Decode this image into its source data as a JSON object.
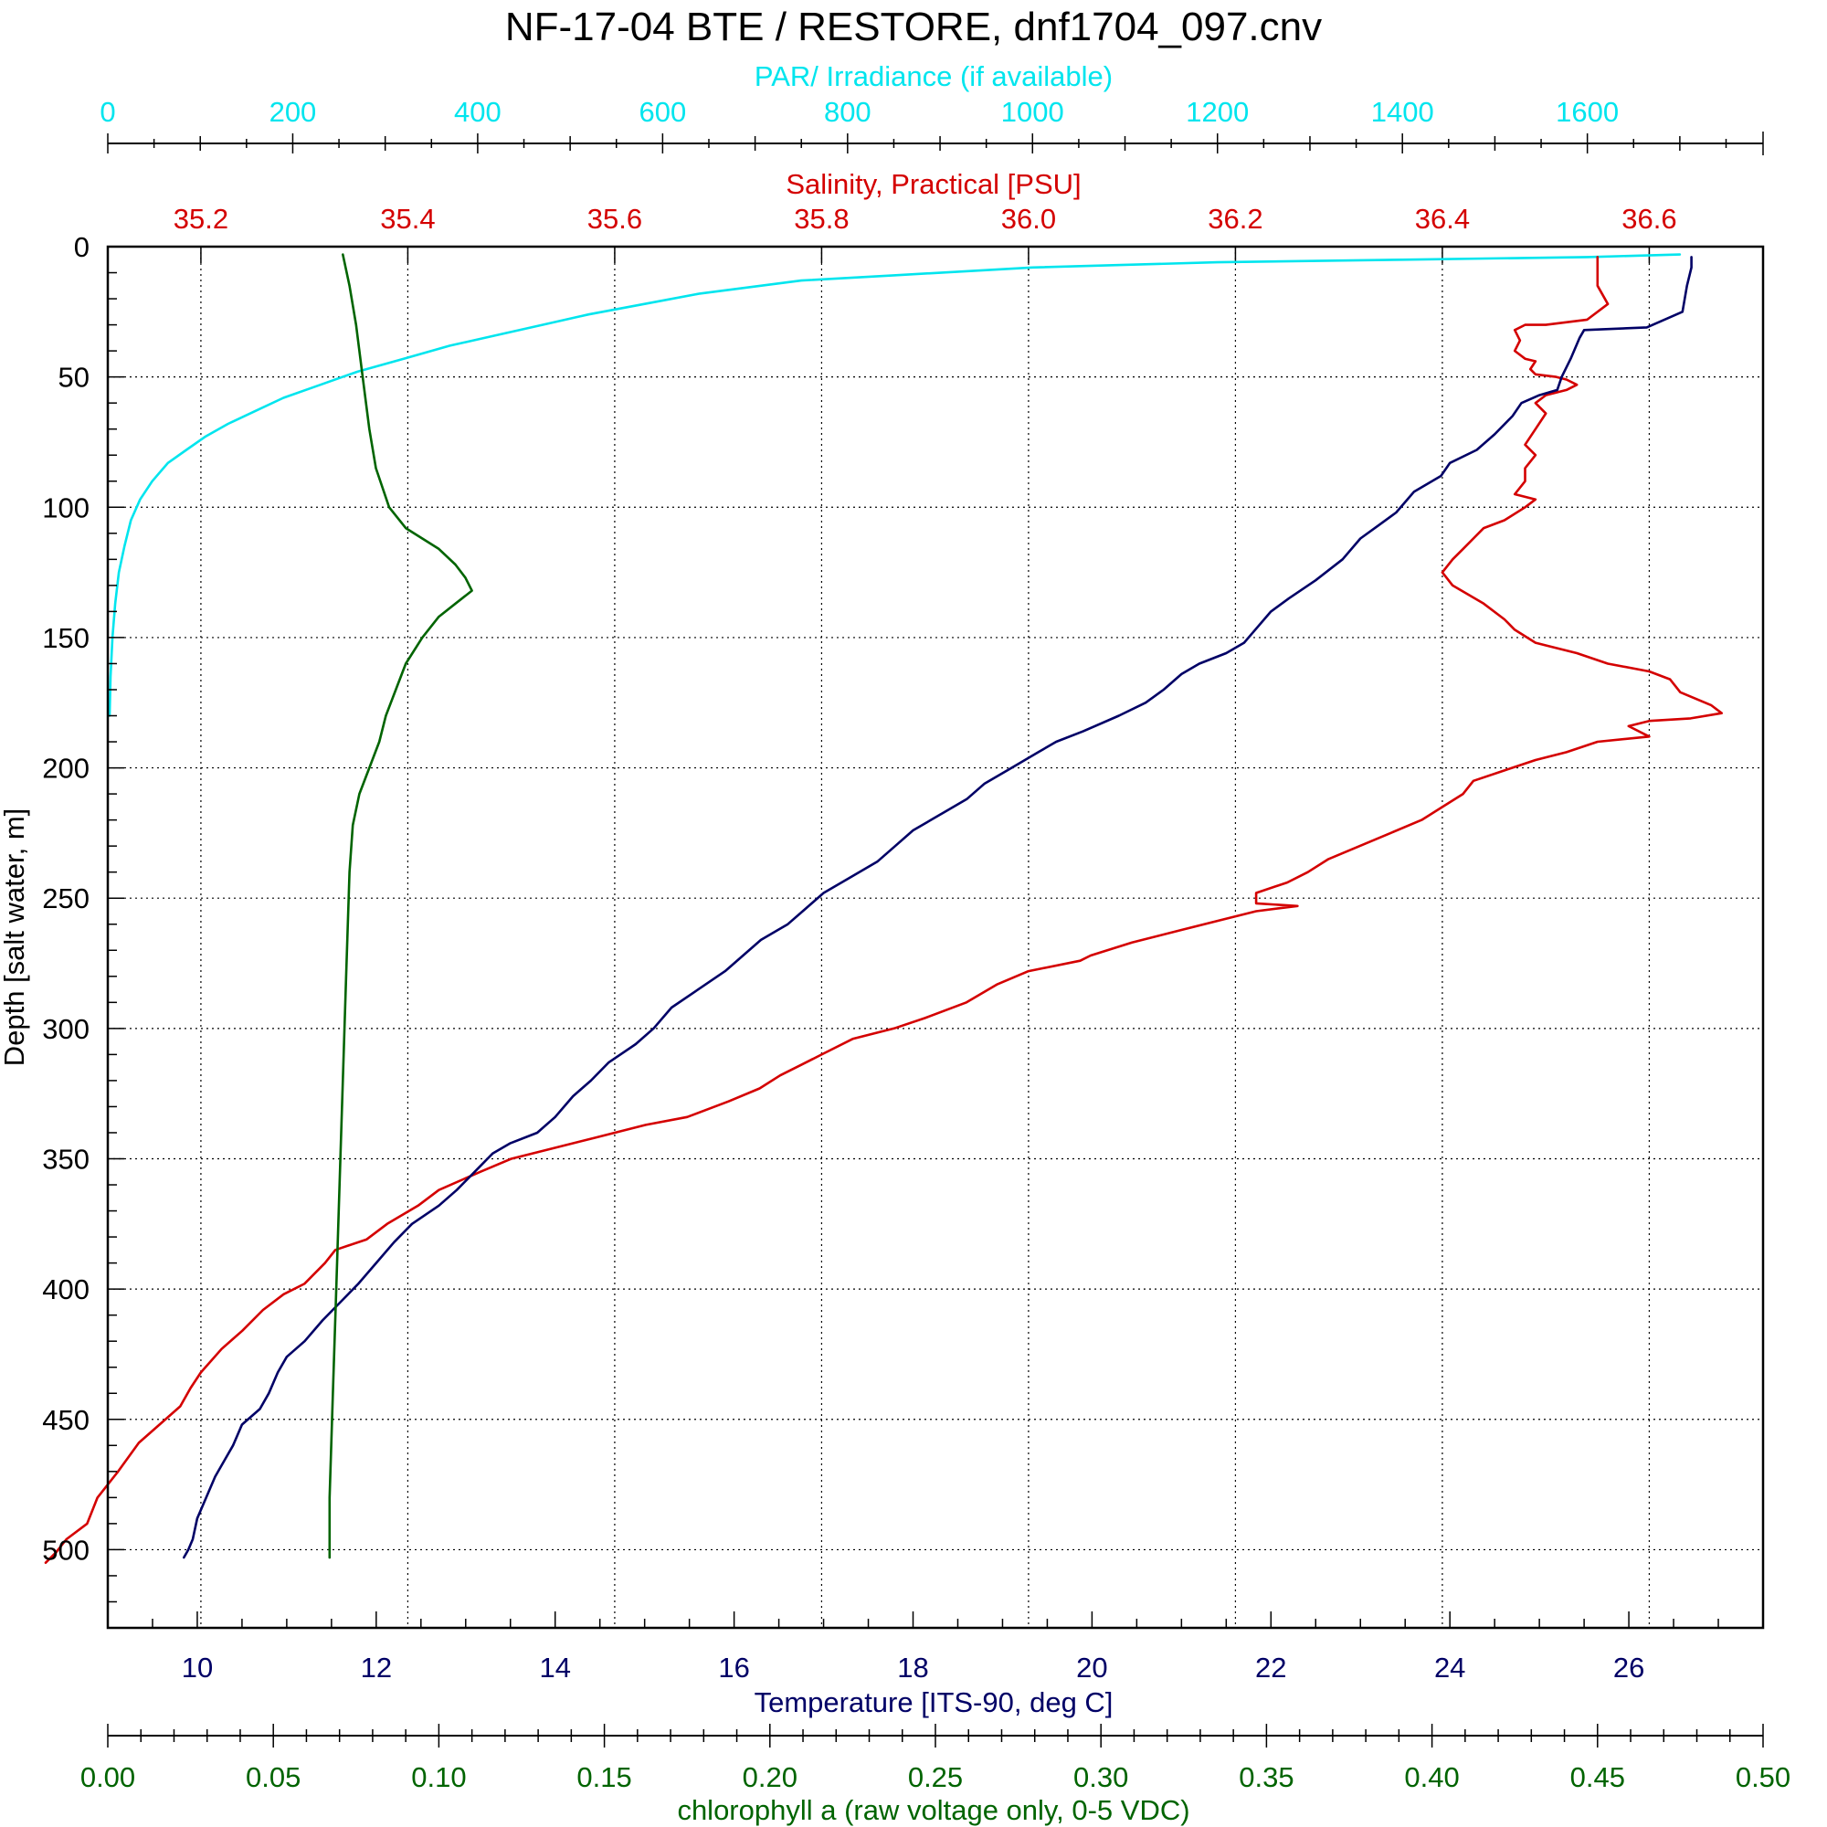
{
  "chart_data": {
    "type": "line",
    "title": "NF-17-04 BTE / RESTORE, dnf1704_097.cnv",
    "y_axis": {
      "label": "Depth [salt water, m]",
      "range": [
        0,
        530
      ],
      "inverted": true,
      "ticks": [
        "0",
        "50",
        "100",
        "150",
        "200",
        "250",
        "300",
        "350",
        "400",
        "450",
        "500"
      ]
    },
    "axes": {
      "par": {
        "label": "PAR/ Irradiance (if available)",
        "color": "#00E5EE",
        "range": [
          0,
          1790
        ],
        "ticks": [
          "0",
          "200",
          "400",
          "600",
          "800",
          "1000",
          "1200",
          "1400",
          "1600"
        ]
      },
      "salinity": {
        "label": "Salinity, Practical [PSU]",
        "color": "#D40000",
        "range": [
          35.11,
          36.71
        ],
        "ticks": [
          "35.2",
          "35.4",
          "35.6",
          "35.8",
          "36.0",
          "36.2",
          "36.4",
          "36.6"
        ]
      },
      "temperature": {
        "label": "Temperature [ITS-90, deg C]",
        "color": "#000066",
        "range": [
          9,
          27.5
        ],
        "ticks": [
          "10",
          "12",
          "14",
          "16",
          "18",
          "20",
          "22",
          "24",
          "26"
        ]
      },
      "chlorophyll": {
        "label": "chlorophyll a (raw voltage only, 0-5 VDC)",
        "color": "#006400",
        "range": [
          0,
          0.5
        ],
        "ticks": [
          "0.00",
          "0.05",
          "0.10",
          "0.15",
          "0.20",
          "0.25",
          "0.30",
          "0.35",
          "0.40",
          "0.45",
          "0.50"
        ]
      }
    },
    "grid": true,
    "series": [
      {
        "axis": "par",
        "color": "#00E5EE",
        "points": [
          [
            1700,
            3
          ],
          [
            1600,
            4
          ],
          [
            1400,
            5
          ],
          [
            1200,
            6
          ],
          [
            1000,
            8
          ],
          [
            850,
            11
          ],
          [
            750,
            13
          ],
          [
            640,
            18
          ],
          [
            580,
            22
          ],
          [
            520,
            26
          ],
          [
            470,
            30
          ],
          [
            420,
            34
          ],
          [
            370,
            38
          ],
          [
            320,
            43
          ],
          [
            270,
            48
          ],
          [
            230,
            53
          ],
          [
            190,
            58
          ],
          [
            160,
            63
          ],
          [
            130,
            68
          ],
          [
            105,
            73
          ],
          [
            85,
            78
          ],
          [
            65,
            83
          ],
          [
            48,
            90
          ],
          [
            35,
            97
          ],
          [
            25,
            105
          ],
          [
            18,
            115
          ],
          [
            12,
            125
          ],
          [
            8,
            137
          ],
          [
            5,
            150
          ],
          [
            3,
            165
          ],
          [
            2,
            180
          ]
        ]
      },
      {
        "axis": "salinity",
        "color": "#D40000",
        "points": [
          [
            36.55,
            4
          ],
          [
            36.55,
            10
          ],
          [
            36.55,
            15
          ],
          [
            36.56,
            22
          ],
          [
            36.54,
            28
          ],
          [
            36.5,
            30
          ],
          [
            36.48,
            30
          ],
          [
            36.47,
            32
          ],
          [
            36.475,
            36
          ],
          [
            36.47,
            40
          ],
          [
            36.48,
            43
          ],
          [
            36.49,
            44
          ],
          [
            36.485,
            47
          ],
          [
            36.49,
            49
          ],
          [
            36.51,
            50
          ],
          [
            36.52,
            51
          ],
          [
            36.53,
            53
          ],
          [
            36.52,
            55
          ],
          [
            36.5,
            57
          ],
          [
            36.49,
            60
          ],
          [
            36.5,
            64
          ],
          [
            36.49,
            70
          ],
          [
            36.48,
            76
          ],
          [
            36.49,
            80
          ],
          [
            36.48,
            85
          ],
          [
            36.48,
            90
          ],
          [
            36.47,
            95
          ],
          [
            36.49,
            97
          ],
          [
            36.48,
            100
          ],
          [
            36.46,
            105
          ],
          [
            36.44,
            108
          ],
          [
            36.43,
            112
          ],
          [
            36.42,
            116
          ],
          [
            36.41,
            120
          ],
          [
            36.4,
            125
          ],
          [
            36.41,
            130
          ],
          [
            36.44,
            137
          ],
          [
            36.46,
            143
          ],
          [
            36.47,
            147
          ],
          [
            36.49,
            152
          ],
          [
            36.5,
            153
          ],
          [
            36.53,
            156
          ],
          [
            36.56,
            160
          ],
          [
            36.6,
            163
          ],
          [
            36.62,
            166
          ],
          [
            36.63,
            171
          ],
          [
            36.66,
            176
          ],
          [
            36.67,
            179
          ],
          [
            36.64,
            181
          ],
          [
            36.6,
            182
          ],
          [
            36.58,
            184
          ],
          [
            36.6,
            188
          ],
          [
            36.55,
            190
          ],
          [
            36.52,
            194
          ],
          [
            36.49,
            197
          ],
          [
            36.46,
            201
          ],
          [
            36.43,
            205
          ],
          [
            36.42,
            210
          ],
          [
            36.4,
            215
          ],
          [
            36.38,
            220
          ],
          [
            36.35,
            225
          ],
          [
            36.32,
            230
          ],
          [
            36.29,
            235
          ],
          [
            36.27,
            240
          ],
          [
            36.25,
            244
          ],
          [
            36.22,
            248
          ],
          [
            36.22,
            252
          ],
          [
            36.26,
            253
          ],
          [
            36.22,
            255
          ],
          [
            36.19,
            258
          ],
          [
            36.15,
            262
          ],
          [
            36.1,
            267
          ],
          [
            36.06,
            272
          ],
          [
            36.05,
            274
          ],
          [
            36.0,
            278
          ],
          [
            35.97,
            283
          ],
          [
            35.94,
            290
          ],
          [
            35.9,
            296
          ],
          [
            35.87,
            300
          ],
          [
            35.83,
            304
          ],
          [
            35.8,
            310
          ],
          [
            35.78,
            314
          ],
          [
            35.76,
            318
          ],
          [
            35.74,
            323
          ],
          [
            35.71,
            328
          ],
          [
            35.67,
            334
          ],
          [
            35.63,
            337
          ],
          [
            35.58,
            342
          ],
          [
            35.54,
            346
          ],
          [
            35.5,
            350
          ],
          [
            35.47,
            355
          ],
          [
            35.43,
            362
          ],
          [
            35.41,
            368
          ],
          [
            35.38,
            375
          ],
          [
            35.36,
            381
          ],
          [
            35.33,
            385
          ],
          [
            35.32,
            390
          ],
          [
            35.3,
            398
          ],
          [
            35.28,
            402
          ],
          [
            35.26,
            408
          ],
          [
            35.24,
            416
          ],
          [
            35.22,
            423
          ],
          [
            35.2,
            432
          ],
          [
            35.19,
            438
          ],
          [
            35.18,
            445
          ],
          [
            35.16,
            452
          ],
          [
            35.14,
            459
          ],
          [
            35.12,
            470
          ],
          [
            35.1,
            480
          ],
          [
            35.09,
            490
          ],
          [
            35.07,
            496
          ],
          [
            35.06,
            501
          ],
          [
            35.05,
            505
          ]
        ]
      },
      {
        "axis": "temperature",
        "color": "#000066",
        "points": [
          [
            26.7,
            4
          ],
          [
            26.7,
            8
          ],
          [
            26.65,
            15
          ],
          [
            26.6,
            25
          ],
          [
            26.2,
            31
          ],
          [
            25.5,
            32
          ],
          [
            25.45,
            35
          ],
          [
            25.35,
            43
          ],
          [
            25.25,
            50
          ],
          [
            25.2,
            55
          ],
          [
            25.0,
            57
          ],
          [
            24.8,
            60
          ],
          [
            24.7,
            65
          ],
          [
            24.5,
            72
          ],
          [
            24.3,
            78
          ],
          [
            24.0,
            83
          ],
          [
            23.9,
            88
          ],
          [
            23.6,
            94
          ],
          [
            23.5,
            98
          ],
          [
            23.4,
            102
          ],
          [
            23.2,
            107
          ],
          [
            23.0,
            112
          ],
          [
            22.8,
            120
          ],
          [
            22.5,
            128
          ],
          [
            22.2,
            135
          ],
          [
            22.0,
            140
          ],
          [
            21.8,
            148
          ],
          [
            21.7,
            152
          ],
          [
            21.5,
            156
          ],
          [
            21.2,
            160
          ],
          [
            21.0,
            164
          ],
          [
            20.8,
            170
          ],
          [
            20.6,
            175
          ],
          [
            20.3,
            180
          ],
          [
            19.9,
            186
          ],
          [
            19.6,
            190
          ],
          [
            19.4,
            194
          ],
          [
            19.1,
            200
          ],
          [
            18.8,
            206
          ],
          [
            18.6,
            212
          ],
          [
            18.3,
            218
          ],
          [
            18.0,
            224
          ],
          [
            17.8,
            230
          ],
          [
            17.6,
            236
          ],
          [
            17.3,
            242
          ],
          [
            17.0,
            248
          ],
          [
            16.8,
            254
          ],
          [
            16.6,
            260
          ],
          [
            16.3,
            266
          ],
          [
            16.1,
            272
          ],
          [
            15.9,
            278
          ],
          [
            15.6,
            285
          ],
          [
            15.3,
            292
          ],
          [
            15.1,
            300
          ],
          [
            14.9,
            306
          ],
          [
            14.6,
            313
          ],
          [
            14.4,
            320
          ],
          [
            14.2,
            326
          ],
          [
            14.0,
            334
          ],
          [
            13.8,
            340
          ],
          [
            13.5,
            344
          ],
          [
            13.3,
            348
          ],
          [
            13.1,
            355
          ],
          [
            12.9,
            362
          ],
          [
            12.7,
            368
          ],
          [
            12.4,
            375
          ],
          [
            12.2,
            382
          ],
          [
            12.0,
            390
          ],
          [
            11.8,
            398
          ],
          [
            11.6,
            405
          ],
          [
            11.4,
            412
          ],
          [
            11.2,
            420
          ],
          [
            11.0,
            426
          ],
          [
            10.9,
            432
          ],
          [
            10.8,
            440
          ],
          [
            10.7,
            446
          ],
          [
            10.5,
            452
          ],
          [
            10.4,
            460
          ],
          [
            10.3,
            466
          ],
          [
            10.2,
            472
          ],
          [
            10.1,
            480
          ],
          [
            10.0,
            488
          ],
          [
            9.95,
            496
          ],
          [
            9.9,
            500
          ],
          [
            9.85,
            503
          ]
        ]
      },
      {
        "axis": "chlorophyll",
        "color": "#006400",
        "points": [
          [
            0.071,
            3
          ],
          [
            0.073,
            15
          ],
          [
            0.075,
            30
          ],
          [
            0.077,
            50
          ],
          [
            0.079,
            70
          ],
          [
            0.081,
            85
          ],
          [
            0.085,
            100
          ],
          [
            0.09,
            108
          ],
          [
            0.1,
            116
          ],
          [
            0.105,
            122
          ],
          [
            0.108,
            127
          ],
          [
            0.11,
            132
          ],
          [
            0.105,
            137
          ],
          [
            0.1,
            142
          ],
          [
            0.095,
            150
          ],
          [
            0.09,
            160
          ],
          [
            0.087,
            170
          ],
          [
            0.084,
            180
          ],
          [
            0.082,
            190
          ],
          [
            0.079,
            200
          ],
          [
            0.076,
            210
          ],
          [
            0.074,
            222
          ],
          [
            0.073,
            240
          ],
          [
            0.072,
            280
          ],
          [
            0.071,
            320
          ],
          [
            0.07,
            360
          ],
          [
            0.069,
            400
          ],
          [
            0.068,
            440
          ],
          [
            0.067,
            480
          ],
          [
            0.067,
            503
          ]
        ]
      }
    ]
  }
}
